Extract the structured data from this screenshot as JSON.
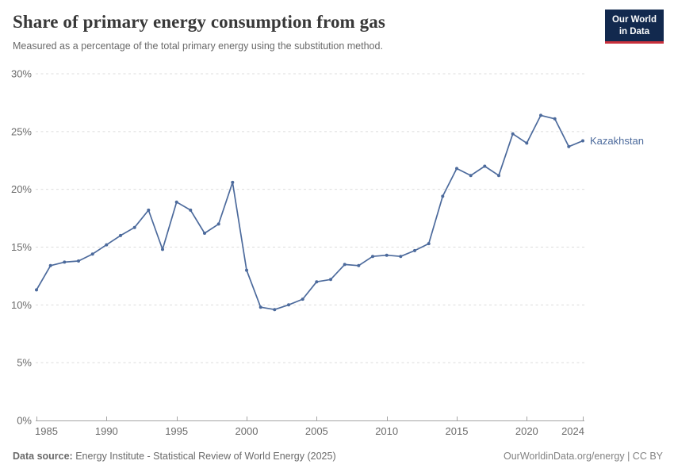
{
  "header": {
    "title": "Share of primary energy consumption from gas",
    "subtitle": "Measured as a percentage of the total primary energy using the substitution method.",
    "logo": {
      "line1": "Our World",
      "line2": "in Data",
      "bg": "#12294E",
      "underline": "#C9303C"
    }
  },
  "chart_data": {
    "type": "line",
    "title": "Share of primary energy consumption from gas",
    "subtitle": "Measured as a percentage of the total primary energy using the substitution method.",
    "xlabel": "",
    "ylabel": "",
    "xlim": [
      1985,
      2024
    ],
    "ylim": [
      0,
      30
    ],
    "x_ticks": [
      1985,
      1990,
      1995,
      2000,
      2005,
      2010,
      2015,
      2020,
      2024
    ],
    "y_ticks": [
      0,
      5,
      10,
      15,
      20,
      25,
      30
    ],
    "y_tick_suffix": "%",
    "grid": "horizontal-dashed",
    "legend": "end-of-line-label",
    "years": [
      1985,
      1986,
      1987,
      1988,
      1989,
      1990,
      1991,
      1992,
      1993,
      1994,
      1995,
      1996,
      1997,
      1998,
      1999,
      2000,
      2001,
      2002,
      2003,
      2004,
      2005,
      2006,
      2007,
      2008,
      2009,
      2010,
      2011,
      2012,
      2013,
      2014,
      2015,
      2016,
      2017,
      2018,
      2019,
      2020,
      2021,
      2022,
      2023,
      2024
    ],
    "series": [
      {
        "name": "Kazakhstan",
        "color": "#4C6A9C",
        "values": [
          11.3,
          13.4,
          13.7,
          13.8,
          14.4,
          15.2,
          16.0,
          16.7,
          18.2,
          14.8,
          18.9,
          18.2,
          16.2,
          17.0,
          20.6,
          13.0,
          9.8,
          9.6,
          10.0,
          10.5,
          12.0,
          12.2,
          13.5,
          13.4,
          14.2,
          14.3,
          14.2,
          14.7,
          15.3,
          19.4,
          21.8,
          21.2,
          22.0,
          21.2,
          24.8,
          24.0,
          26.4,
          26.1,
          23.7,
          24.2
        ]
      }
    ]
  },
  "footer": {
    "source_label": "Data source:",
    "source_text": "Energy Institute - Statistical Review of World Energy (2025)",
    "attribution": "OurWorldinData.org/energy | CC BY"
  },
  "colors": {
    "accent_line": "#4C6A9C",
    "grid": "#DCDCDC",
    "axis": "#A5A5A5",
    "title": "#383838",
    "muted_text": "#696969"
  }
}
